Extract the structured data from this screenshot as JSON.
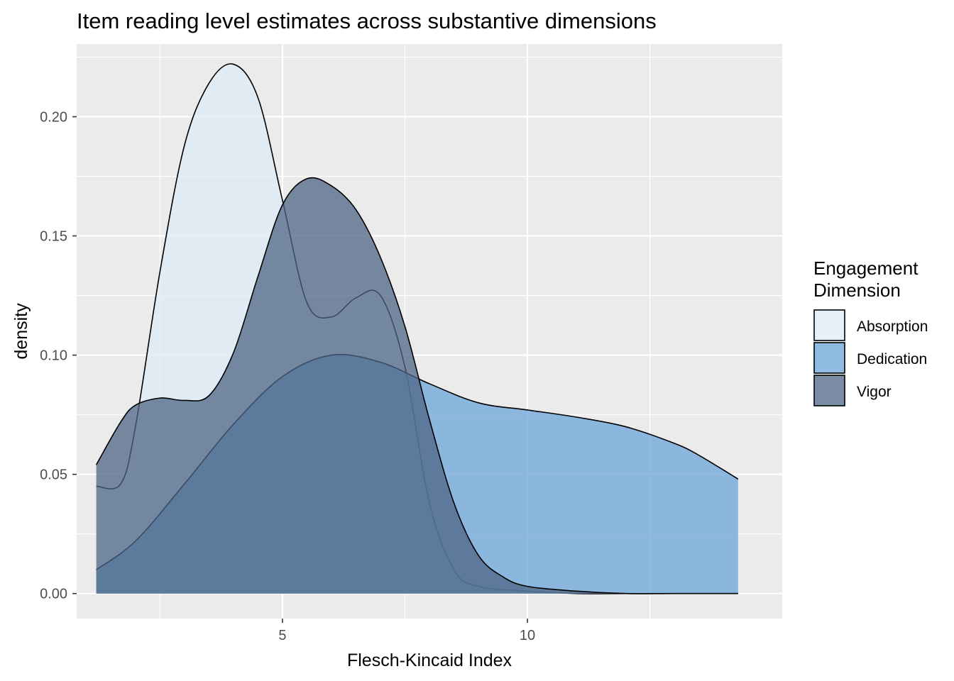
{
  "chart_data": {
    "type": "area",
    "title": "Item reading level estimates across substantive dimensions",
    "xlabel": "Flesch-Kincaid Index",
    "ylabel": "density",
    "xlim": [
      0.8,
      15.2
    ],
    "ylim": [
      -0.0105,
      0.2305
    ],
    "x_ticks": [
      5,
      10
    ],
    "x_tick_labels": [
      "5",
      "10"
    ],
    "y_ticks": [
      0.0,
      0.05,
      0.1,
      0.15,
      0.2
    ],
    "y_tick_labels": [
      "0.00",
      "0.05",
      "0.10",
      "0.15",
      "0.20"
    ],
    "grid": true,
    "legend": {
      "title_lines": [
        "Engagement",
        "Dimension"
      ],
      "placement": "right"
    },
    "series": [
      {
        "name": "Absorption",
        "color": "#deebf7",
        "x": [
          1.2,
          1.7,
          2.0,
          2.5,
          3.0,
          3.5,
          4.0,
          4.5,
          5.0,
          5.5,
          6.0,
          6.5,
          7.0,
          7.5,
          8.0,
          8.5,
          9.0,
          10.0,
          11.0,
          12.0,
          13.0,
          14.3
        ],
        "y": [
          0.045,
          0.046,
          0.07,
          0.135,
          0.188,
          0.214,
          0.222,
          0.208,
          0.165,
          0.122,
          0.116,
          0.124,
          0.125,
          0.095,
          0.038,
          0.01,
          0.003,
          0.001,
          0.0,
          0.0,
          0.0,
          0.0
        ]
      },
      {
        "name": "Dedication",
        "color": "#6ba4d8",
        "x": [
          1.2,
          2.0,
          3.0,
          4.0,
          5.0,
          6.0,
          7.0,
          8.0,
          9.0,
          10.0,
          11.0,
          12.0,
          13.0,
          13.5,
          14.3
        ],
        "y": [
          0.01,
          0.022,
          0.046,
          0.071,
          0.091,
          0.1,
          0.097,
          0.088,
          0.08,
          0.077,
          0.074,
          0.07,
          0.063,
          0.058,
          0.048
        ]
      },
      {
        "name": "Vigor",
        "color": "#4e6585",
        "x": [
          1.2,
          1.7,
          2.0,
          2.5,
          3.0,
          3.5,
          4.0,
          4.5,
          5.0,
          5.5,
          6.0,
          6.5,
          7.0,
          7.5,
          8.0,
          8.5,
          9.0,
          9.5,
          10.0,
          11.0,
          12.0,
          13.0,
          14.3
        ],
        "y": [
          0.054,
          0.072,
          0.079,
          0.082,
          0.081,
          0.083,
          0.101,
          0.133,
          0.163,
          0.174,
          0.171,
          0.161,
          0.141,
          0.112,
          0.073,
          0.038,
          0.016,
          0.007,
          0.003,
          0.001,
          0.0,
          0.0,
          0.0
        ]
      }
    ]
  }
}
